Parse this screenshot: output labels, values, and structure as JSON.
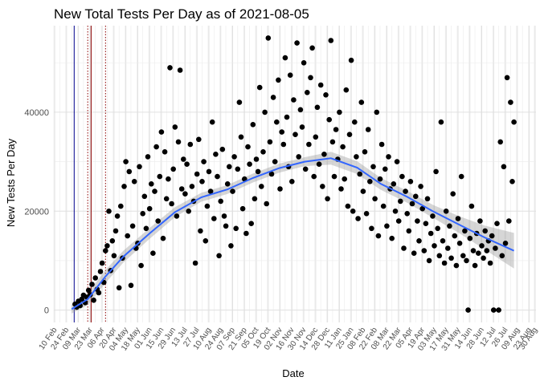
{
  "chart_data": {
    "type": "scatter",
    "title": "New Total Tests Per Day as of 2021-08-05",
    "xlabel": "Date",
    "ylabel": "New Tests Per Day",
    "grid": true,
    "legend": "none",
    "x_type": "date",
    "xlim": [
      "2020-02-09",
      "2021-08-31"
    ],
    "ylim": [
      -2500,
      57500
    ],
    "yticks": [
      0,
      20000,
      40000
    ],
    "ytick_labels": [
      "0",
      "20000",
      "40000"
    ],
    "xticks": [
      {
        "date": "2020-02-10",
        "label": "10 Feb"
      },
      {
        "date": "2020-02-24",
        "label": "24 Feb"
      },
      {
        "date": "2020-03-09",
        "label": "09 Mar"
      },
      {
        "date": "2020-03-23",
        "label": "23 Mar"
      },
      {
        "date": "2020-04-06",
        "label": "06 Apr"
      },
      {
        "date": "2020-04-20",
        "label": "20 Apr"
      },
      {
        "date": "2020-05-04",
        "label": "04 May"
      },
      {
        "date": "2020-05-18",
        "label": "18 May"
      },
      {
        "date": "2020-06-01",
        "label": "01 Jun"
      },
      {
        "date": "2020-06-15",
        "label": "15 Jun"
      },
      {
        "date": "2020-06-29",
        "label": "29 Jun"
      },
      {
        "date": "2020-07-13",
        "label": "13 Jul"
      },
      {
        "date": "2020-07-27",
        "label": "27 Jul"
      },
      {
        "date": "2020-08-10",
        "label": "10 Aug"
      },
      {
        "date": "2020-08-24",
        "label": "24 Aug"
      },
      {
        "date": "2020-09-07",
        "label": "07 Sep"
      },
      {
        "date": "2020-09-21",
        "label": "21 Sep"
      },
      {
        "date": "2020-10-05",
        "label": "05 Oct"
      },
      {
        "date": "2020-10-19",
        "label": "19 Oct"
      },
      {
        "date": "2020-11-02",
        "label": "02 Nov"
      },
      {
        "date": "2020-11-16",
        "label": "16 Nov"
      },
      {
        "date": "2020-11-30",
        "label": "30 Nov"
      },
      {
        "date": "2020-12-14",
        "label": "14 Dec"
      },
      {
        "date": "2020-12-28",
        "label": "28 Dec"
      },
      {
        "date": "2021-01-11",
        "label": "11 Jan"
      },
      {
        "date": "2021-01-25",
        "label": "25 Jan"
      },
      {
        "date": "2021-02-08",
        "label": "08 Feb"
      },
      {
        "date": "2021-02-22",
        "label": "22 Feb"
      },
      {
        "date": "2021-03-08",
        "label": "08 Mar"
      },
      {
        "date": "2021-03-22",
        "label": "22 Mar"
      },
      {
        "date": "2021-04-05",
        "label": "05 Apr"
      },
      {
        "date": "2021-04-19",
        "label": "19 Apr"
      },
      {
        "date": "2021-05-03",
        "label": "03 May"
      },
      {
        "date": "2021-05-17",
        "label": "17 May"
      },
      {
        "date": "2021-05-31",
        "label": "31 May"
      },
      {
        "date": "2021-06-14",
        "label": "14 Jun"
      },
      {
        "date": "2021-06-28",
        "label": "28 Jun"
      },
      {
        "date": "2021-07-12",
        "label": "12 Jul"
      },
      {
        "date": "2021-07-26",
        "label": "26 Jul"
      },
      {
        "date": "2021-08-09",
        "label": "09 Aug"
      },
      {
        "date": "2021-08-23",
        "label": "23 Aug"
      },
      {
        "date": "2021-08-30",
        "label": "30 Aug"
      }
    ],
    "reference_lines": [
      {
        "date": "2020-03-04",
        "style": "solid",
        "color": "#00008b"
      },
      {
        "date": "2020-03-20",
        "style": "dotted",
        "color": "#8b0000"
      },
      {
        "date": "2020-03-24",
        "style": "solid",
        "color": "#8b0000"
      },
      {
        "date": "2020-04-10",
        "style": "dotted",
        "color": "#8b0000"
      }
    ],
    "colors": {
      "points": "#000000",
      "smooth": "#3366ff",
      "ribbon": "#999999",
      "grid": "#ebebeb",
      "text": "#4d4d4d"
    },
    "series": [
      {
        "type": "scatter",
        "x": [
          "2020-03-05",
          "2020-03-07",
          "2020-03-09",
          "2020-03-11",
          "2020-03-13",
          "2020-03-15",
          "2020-03-17",
          "2020-03-19",
          "2020-03-21",
          "2020-03-23",
          "2020-03-25",
          "2020-03-27",
          "2020-03-29",
          "2020-03-31",
          "2020-04-02",
          "2020-04-04",
          "2020-04-06",
          "2020-04-08",
          "2020-04-10",
          "2020-04-12",
          "2020-04-14",
          "2020-04-16",
          "2020-04-18",
          "2020-04-20",
          "2020-04-22",
          "2020-04-24",
          "2020-04-26",
          "2020-04-28",
          "2020-04-30",
          "2020-05-02",
          "2020-05-04",
          "2020-05-06",
          "2020-05-08",
          "2020-05-10",
          "2020-05-12",
          "2020-05-14",
          "2020-05-16",
          "2020-05-18",
          "2020-05-20",
          "2020-05-22",
          "2020-05-24",
          "2020-05-26",
          "2020-05-28",
          "2020-05-30",
          "2020-06-01",
          "2020-06-03",
          "2020-06-05",
          "2020-06-07",
          "2020-06-09",
          "2020-06-11",
          "2020-06-13",
          "2020-06-15",
          "2020-06-17",
          "2020-06-19",
          "2020-06-21",
          "2020-06-23",
          "2020-06-25",
          "2020-06-27",
          "2020-06-29",
          "2020-07-01",
          "2020-07-03",
          "2020-07-05",
          "2020-07-07",
          "2020-07-09",
          "2020-07-11",
          "2020-07-13",
          "2020-07-15",
          "2020-07-17",
          "2020-07-19",
          "2020-07-21",
          "2020-07-23",
          "2020-07-25",
          "2020-07-27",
          "2020-07-29",
          "2020-07-31",
          "2020-08-02",
          "2020-08-04",
          "2020-08-06",
          "2020-08-08",
          "2020-08-10",
          "2020-08-12",
          "2020-08-14",
          "2020-08-16",
          "2020-08-18",
          "2020-08-20",
          "2020-08-22",
          "2020-08-24",
          "2020-08-26",
          "2020-08-28",
          "2020-08-30",
          "2020-09-01",
          "2020-09-03",
          "2020-09-05",
          "2020-09-07",
          "2020-09-09",
          "2020-09-11",
          "2020-09-13",
          "2020-09-15",
          "2020-09-17",
          "2020-09-19",
          "2020-09-21",
          "2020-09-23",
          "2020-09-25",
          "2020-09-27",
          "2020-09-29",
          "2020-10-01",
          "2020-10-03",
          "2020-10-05",
          "2020-10-07",
          "2020-10-09",
          "2020-10-11",
          "2020-10-13",
          "2020-10-15",
          "2020-10-17",
          "2020-10-19",
          "2020-10-21",
          "2020-10-23",
          "2020-10-25",
          "2020-10-27",
          "2020-10-29",
          "2020-10-31",
          "2020-11-02",
          "2020-11-04",
          "2020-11-06",
          "2020-11-08",
          "2020-11-10",
          "2020-11-12",
          "2020-11-14",
          "2020-11-16",
          "2020-11-18",
          "2020-11-20",
          "2020-11-22",
          "2020-11-24",
          "2020-11-26",
          "2020-11-28",
          "2020-11-30",
          "2020-12-02",
          "2020-12-04",
          "2020-12-06",
          "2020-12-08",
          "2020-12-10",
          "2020-12-12",
          "2020-12-14",
          "2020-12-16",
          "2020-12-18",
          "2020-12-20",
          "2020-12-22",
          "2020-12-24",
          "2020-12-26",
          "2020-12-28",
          "2020-12-30",
          "2021-01-01",
          "2021-01-03",
          "2021-01-05",
          "2021-01-07",
          "2021-01-09",
          "2021-01-11",
          "2021-01-13",
          "2021-01-15",
          "2021-01-17",
          "2021-01-19",
          "2021-01-21",
          "2021-01-23",
          "2021-01-25",
          "2021-01-27",
          "2021-01-29",
          "2021-01-31",
          "2021-02-02",
          "2021-02-04",
          "2021-02-06",
          "2021-02-08",
          "2021-02-10",
          "2021-02-12",
          "2021-02-14",
          "2021-02-16",
          "2021-02-18",
          "2021-02-20",
          "2021-02-22",
          "2021-02-24",
          "2021-02-26",
          "2021-02-28",
          "2021-03-02",
          "2021-03-04",
          "2021-03-06",
          "2021-03-08",
          "2021-03-10",
          "2021-03-12",
          "2021-03-14",
          "2021-03-16",
          "2021-03-18",
          "2021-03-20",
          "2021-03-22",
          "2021-03-24",
          "2021-03-26",
          "2021-03-28",
          "2021-03-30",
          "2021-04-01",
          "2021-04-03",
          "2021-04-05",
          "2021-04-07",
          "2021-04-09",
          "2021-04-11",
          "2021-04-13",
          "2021-04-15",
          "2021-04-17",
          "2021-04-19",
          "2021-04-21",
          "2021-04-23",
          "2021-04-25",
          "2021-04-27",
          "2021-04-29",
          "2021-05-01",
          "2021-05-03",
          "2021-05-05",
          "2021-05-07",
          "2021-05-09",
          "2021-05-11",
          "2021-05-13",
          "2021-05-15",
          "2021-05-17",
          "2021-05-19",
          "2021-05-21",
          "2021-05-23",
          "2021-05-25",
          "2021-05-27",
          "2021-05-29",
          "2021-05-31",
          "2021-06-02",
          "2021-06-04",
          "2021-06-06",
          "2021-06-08",
          "2021-06-10",
          "2021-06-12",
          "2021-06-14",
          "2021-06-16",
          "2021-06-18",
          "2021-06-20",
          "2021-06-22",
          "2021-06-24",
          "2021-06-26",
          "2021-06-28",
          "2021-06-30",
          "2021-07-02",
          "2021-07-04",
          "2021-07-06",
          "2021-07-08",
          "2021-07-10",
          "2021-07-12",
          "2021-07-14",
          "2021-07-16",
          "2021-07-18",
          "2021-07-20",
          "2021-07-22",
          "2021-07-24",
          "2021-07-26",
          "2021-07-28",
          "2021-07-30",
          "2021-08-01",
          "2021-08-03",
          "2021-08-05"
        ],
        "y": [
          1200,
          600,
          1800,
          900,
          2200,
          3000,
          1500,
          2600,
          4000,
          3100,
          5200,
          2000,
          6500,
          4200,
          3500,
          7800,
          9500,
          5600,
          12000,
          13000,
          20000,
          8000,
          14000,
          11000,
          16000,
          19000,
          4500,
          21000,
          10500,
          25000,
          30000,
          15000,
          28000,
          5000,
          17000,
          26000,
          12500,
          13500,
          29000,
          9000,
          19500,
          23000,
          16500,
          31000,
          20500,
          25500,
          11500,
          24000,
          33000,
          18000,
          27000,
          36000,
          14500,
          32000,
          22500,
          26500,
          49000,
          21500,
          28500,
          37000,
          19000,
          34000,
          48500,
          24500,
          30500,
          23500,
          29500,
          20000,
          33500,
          25000,
          22000,
          9500,
          27500,
          34500,
          16000,
          26000,
          30000,
          14000,
          21000,
          28000,
          24000,
          38000,
          18500,
          31500,
          27000,
          11000,
          22000,
          32500,
          19000,
          17000,
          25500,
          29000,
          13000,
          24000,
          31000,
          16500,
          28500,
          42000,
          35000,
          20500,
          26500,
          15500,
          33000,
          29500,
          17500,
          37500,
          22500,
          30500,
          28000,
          45000,
          25000,
          32000,
          40000,
          21500,
          55000,
          34000,
          27500,
          43000,
          30000,
          38000,
          46500,
          24500,
          36000,
          33500,
          51000,
          39000,
          29000,
          47500,
          26000,
          42500,
          35500,
          54000,
          31000,
          40500,
          37000,
          50000,
          28500,
          44000,
          33500,
          47000,
          53000,
          27000,
          35000,
          41000,
          29500,
          45500,
          25000,
          31500,
          43500,
          22500,
          38500,
          54500,
          34000,
          27000,
          36500,
          30500,
          40000,
          24500,
          33000,
          26500,
          44500,
          21000,
          35500,
          50500,
          20000,
          38000,
          31000,
          18500,
          27500,
          42000,
          24000,
          32000,
          19500,
          36500,
          26000,
          16500,
          29000,
          22500,
          40000,
          15000,
          26500,
          33500,
          21000,
          28500,
          17000,
          31000,
          24500,
          14500,
          25500,
          20000,
          30000,
          18000,
          22000,
          27000,
          12500,
          24000,
          19500,
          16000,
          26000,
          21500,
          11500,
          23000,
          18000,
          14000,
          25000,
          20500,
          12000,
          17500,
          22500,
          10000,
          15500,
          19000,
          13000,
          28000,
          16500,
          11000,
          38000,
          14000,
          9500,
          20000,
          12500,
          17000,
          10500,
          23500,
          15000,
          9000,
          18500,
          13500,
          27000,
          11000,
          16000,
          10000,
          0,
          14500,
          21000,
          12000,
          9000,
          15500,
          11500,
          18000,
          13000,
          10500,
          16000,
          12000,
          14000,
          9500,
          15000,
          0,
          12500,
          17500,
          0,
          34000,
          11000,
          29000,
          13500,
          47000,
          18000,
          42000,
          26000,
          38000
        ]
      },
      {
        "type": "smooth",
        "x": [
          "2020-03-01",
          "2020-03-20",
          "2020-04-10",
          "2020-05-01",
          "2020-06-01",
          "2020-07-01",
          "2020-08-01",
          "2020-09-01",
          "2020-10-01",
          "2020-11-01",
          "2020-12-01",
          "2021-01-01",
          "2021-02-01",
          "2021-03-01",
          "2021-04-01",
          "2021-05-01",
          "2021-06-01",
          "2021-07-01",
          "2021-08-05"
        ],
        "y": [
          200,
          2200,
          6800,
          10800,
          15500,
          19800,
          22800,
          24400,
          26700,
          28700,
          30000,
          30700,
          28800,
          25500,
          22900,
          20000,
          17300,
          14700,
          12000
        ],
        "lower": [
          -700,
          1000,
          5500,
          9600,
          14400,
          18800,
          21900,
          23500,
          25800,
          27800,
          29100,
          29400,
          27500,
          24300,
          21700,
          18700,
          15600,
          12300,
          8400
        ],
        "upper": [
          1100,
          3400,
          8100,
          12000,
          16600,
          20800,
          23700,
          25300,
          27600,
          29600,
          30900,
          32000,
          30100,
          26700,
          24100,
          21300,
          19000,
          17100,
          15600
        ]
      }
    ]
  }
}
